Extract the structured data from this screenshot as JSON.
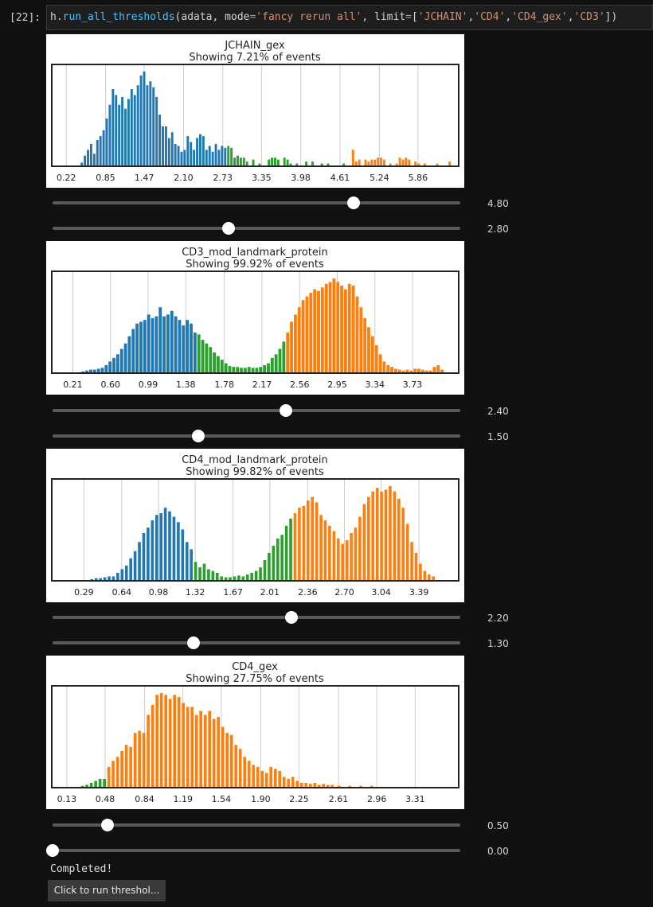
{
  "cell": {
    "prompt": "[22]:",
    "code": {
      "obj": "h.",
      "fn": "run_all_thresholds",
      "arg1": "(adata, mode",
      "eq": "=",
      "mode_val": "'fancy rerun all'",
      "arg2": ", limit",
      "eq2": "=",
      "open": "[",
      "s1": "'JCHAIN'",
      "c1": ",",
      "s2": "'CD4'",
      "c2": ",",
      "s3": "'CD4_gex'",
      "c3": ",",
      "s4": "'CD3'",
      "close": "])"
    }
  },
  "colors": {
    "blue": "#1f77b4",
    "green": "#2ca02c",
    "orange": "#ff7f0e",
    "grid": "#cccccc"
  },
  "chart_data": [
    {
      "type": "bar",
      "title": "JCHAIN_gex",
      "subtitle": "Showing 7.21% of events",
      "xticks": [
        "0.22",
        "0.85",
        "1.47",
        "2.10",
        "2.73",
        "3.35",
        "3.98",
        "4.61",
        "5.24",
        "5.86"
      ],
      "xlim": [
        0.0,
        6.5
      ],
      "bin_width": 0.05,
      "thresholds": [
        2.8,
        4.8
      ],
      "series_colors": [
        "blue",
        "green",
        "orange"
      ],
      "bins": [
        [
          0.45,
          3
        ],
        [
          0.5,
          10
        ],
        [
          0.55,
          16
        ],
        [
          0.6,
          22
        ],
        [
          0.65,
          12
        ],
        [
          0.7,
          26
        ],
        [
          0.75,
          30
        ],
        [
          0.8,
          36
        ],
        [
          0.85,
          48
        ],
        [
          0.9,
          62
        ],
        [
          0.95,
          78
        ],
        [
          1.0,
          72
        ],
        [
          1.05,
          62
        ],
        [
          1.1,
          70
        ],
        [
          1.15,
          58
        ],
        [
          1.2,
          68
        ],
        [
          1.25,
          78
        ],
        [
          1.3,
          72
        ],
        [
          1.35,
          82
        ],
        [
          1.4,
          92
        ],
        [
          1.45,
          96
        ],
        [
          1.5,
          82
        ],
        [
          1.55,
          86
        ],
        [
          1.6,
          80
        ],
        [
          1.65,
          70
        ],
        [
          1.7,
          52
        ],
        [
          1.75,
          40
        ],
        [
          1.8,
          40
        ],
        [
          1.85,
          28
        ],
        [
          1.9,
          34
        ],
        [
          1.95,
          22
        ],
        [
          2.0,
          20
        ],
        [
          2.05,
          14
        ],
        [
          2.1,
          16
        ],
        [
          2.15,
          30
        ],
        [
          2.2,
          24
        ],
        [
          2.25,
          16
        ],
        [
          2.3,
          28
        ],
        [
          2.35,
          32
        ],
        [
          2.4,
          30
        ],
        [
          2.45,
          16
        ],
        [
          2.5,
          20
        ],
        [
          2.55,
          14
        ],
        [
          2.6,
          22
        ],
        [
          2.65,
          16
        ],
        [
          2.7,
          20
        ],
        [
          2.75,
          18
        ],
        [
          2.8,
          20
        ],
        [
          2.85,
          18
        ],
        [
          2.9,
          8
        ],
        [
          2.95,
          10
        ],
        [
          3.0,
          8
        ],
        [
          3.05,
          8
        ],
        [
          3.1,
          4
        ],
        [
          3.2,
          6
        ],
        [
          3.3,
          2
        ],
        [
          3.45,
          6
        ],
        [
          3.5,
          8
        ],
        [
          3.55,
          8
        ],
        [
          3.6,
          6
        ],
        [
          3.7,
          8
        ],
        [
          3.75,
          6
        ],
        [
          3.8,
          2
        ],
        [
          3.9,
          2
        ],
        [
          4.05,
          4
        ],
        [
          4.15,
          4
        ],
        [
          4.3,
          2
        ],
        [
          4.4,
          2
        ],
        [
          4.65,
          2
        ],
        [
          4.8,
          16
        ],
        [
          4.85,
          4
        ],
        [
          4.9,
          6
        ],
        [
          5.0,
          6
        ],
        [
          5.05,
          4
        ],
        [
          5.1,
          6
        ],
        [
          5.15,
          6
        ],
        [
          5.2,
          8
        ],
        [
          5.25,
          8
        ],
        [
          5.3,
          6
        ],
        [
          5.4,
          2
        ],
        [
          5.5,
          2
        ],
        [
          5.55,
          8
        ],
        [
          5.6,
          6
        ],
        [
          5.65,
          8
        ],
        [
          5.7,
          6
        ],
        [
          5.8,
          4
        ],
        [
          5.85,
          2
        ],
        [
          5.95,
          2
        ],
        [
          6.15,
          2
        ],
        [
          6.35,
          4
        ]
      ]
    },
    {
      "type": "bar",
      "title": "CD3_mod_landmark_protein",
      "subtitle": "Showing 99.92% of events",
      "xticks": [
        "0.21",
        "0.60",
        "0.99",
        "1.38",
        "1.78",
        "2.17",
        "2.56",
        "2.95",
        "3.34",
        "3.73"
      ],
      "xlim": [
        0.0,
        4.2
      ],
      "bin_width": 0.04,
      "thresholds": [
        1.5,
        2.4
      ],
      "series_colors": [
        "blue",
        "green",
        "orange"
      ],
      "bins": [
        [
          0.3,
          1
        ],
        [
          0.34,
          2
        ],
        [
          0.38,
          3
        ],
        [
          0.42,
          3
        ],
        [
          0.46,
          4
        ],
        [
          0.5,
          5
        ],
        [
          0.54,
          8
        ],
        [
          0.58,
          12
        ],
        [
          0.62,
          16
        ],
        [
          0.66,
          20
        ],
        [
          0.7,
          26
        ],
        [
          0.74,
          32
        ],
        [
          0.78,
          40
        ],
        [
          0.82,
          48
        ],
        [
          0.86,
          54
        ],
        [
          0.9,
          56
        ],
        [
          0.94,
          58
        ],
        [
          0.98,
          64
        ],
        [
          1.02,
          60
        ],
        [
          1.06,
          62
        ],
        [
          1.1,
          72
        ],
        [
          1.14,
          62
        ],
        [
          1.18,
          64
        ],
        [
          1.22,
          68
        ],
        [
          1.26,
          62
        ],
        [
          1.3,
          58
        ],
        [
          1.34,
          52
        ],
        [
          1.38,
          58
        ],
        [
          1.42,
          54
        ],
        [
          1.46,
          44
        ],
        [
          1.5,
          42
        ],
        [
          1.54,
          36
        ],
        [
          1.58,
          32
        ],
        [
          1.62,
          28
        ],
        [
          1.66,
          22
        ],
        [
          1.7,
          18
        ],
        [
          1.74,
          14
        ],
        [
          1.78,
          10
        ],
        [
          1.82,
          7
        ],
        [
          1.86,
          6
        ],
        [
          1.9,
          6
        ],
        [
          1.94,
          5
        ],
        [
          1.98,
          5
        ],
        [
          2.02,
          6
        ],
        [
          2.06,
          5
        ],
        [
          2.1,
          5
        ],
        [
          2.14,
          6
        ],
        [
          2.18,
          8
        ],
        [
          2.22,
          10
        ],
        [
          2.26,
          16
        ],
        [
          2.3,
          20
        ],
        [
          2.34,
          26
        ],
        [
          2.38,
          34
        ],
        [
          2.42,
          44
        ],
        [
          2.46,
          56
        ],
        [
          2.5,
          64
        ],
        [
          2.54,
          72
        ],
        [
          2.58,
          80
        ],
        [
          2.62,
          84
        ],
        [
          2.66,
          88
        ],
        [
          2.7,
          92
        ],
        [
          2.74,
          90
        ],
        [
          2.78,
          94
        ],
        [
          2.82,
          98
        ],
        [
          2.86,
          100
        ],
        [
          2.9,
          104
        ],
        [
          2.94,
          100
        ],
        [
          2.98,
          96
        ],
        [
          3.02,
          92
        ],
        [
          3.06,
          98
        ],
        [
          3.1,
          96
        ],
        [
          3.14,
          84
        ],
        [
          3.18,
          72
        ],
        [
          3.22,
          60
        ],
        [
          3.26,
          50
        ],
        [
          3.3,
          40
        ],
        [
          3.34,
          30
        ],
        [
          3.38,
          20
        ],
        [
          3.42,
          12
        ],
        [
          3.46,
          8
        ],
        [
          3.5,
          6
        ],
        [
          3.54,
          4
        ],
        [
          3.58,
          3
        ],
        [
          3.62,
          2
        ],
        [
          3.66,
          3
        ],
        [
          3.7,
          2
        ],
        [
          3.74,
          4
        ],
        [
          3.78,
          4
        ],
        [
          3.82,
          3
        ],
        [
          3.86,
          2
        ],
        [
          3.9,
          2
        ],
        [
          3.94,
          6
        ],
        [
          3.98,
          8
        ],
        [
          4.02,
          3
        ]
      ]
    },
    {
      "type": "bar",
      "title": "CD4_mod_landmark_protein",
      "subtitle": "Showing 99.82% of events",
      "xticks": [
        "0.29",
        "0.64",
        "0.98",
        "1.32",
        "1.67",
        "2.01",
        "2.36",
        "2.70",
        "3.04",
        "3.39"
      ],
      "xlim": [
        0.0,
        3.75
      ],
      "bin_width": 0.034,
      "thresholds": [
        1.3,
        2.2
      ],
      "series_colors": [
        "blue",
        "green",
        "orange"
      ],
      "bins": [
        [
          0.35,
          1
        ],
        [
          0.39,
          2
        ],
        [
          0.43,
          2
        ],
        [
          0.47,
          3
        ],
        [
          0.51,
          4
        ],
        [
          0.55,
          4
        ],
        [
          0.59,
          8
        ],
        [
          0.63,
          12
        ],
        [
          0.67,
          16
        ],
        [
          0.71,
          24
        ],
        [
          0.75,
          32
        ],
        [
          0.79,
          42
        ],
        [
          0.83,
          52
        ],
        [
          0.87,
          58
        ],
        [
          0.91,
          66
        ],
        [
          0.95,
          72
        ],
        [
          0.99,
          74
        ],
        [
          1.03,
          80
        ],
        [
          1.07,
          76
        ],
        [
          1.11,
          70
        ],
        [
          1.15,
          64
        ],
        [
          1.19,
          56
        ],
        [
          1.23,
          42
        ],
        [
          1.27,
          34
        ],
        [
          1.31,
          20
        ],
        [
          1.35,
          14
        ],
        [
          1.39,
          18
        ],
        [
          1.43,
          12
        ],
        [
          1.47,
          10
        ],
        [
          1.51,
          8
        ],
        [
          1.55,
          4
        ],
        [
          1.59,
          3
        ],
        [
          1.63,
          3
        ],
        [
          1.67,
          4
        ],
        [
          1.71,
          5
        ],
        [
          1.75,
          4
        ],
        [
          1.79,
          6
        ],
        [
          1.83,
          8
        ],
        [
          1.87,
          10
        ],
        [
          1.91,
          14
        ],
        [
          1.95,
          22
        ],
        [
          1.99,
          30
        ],
        [
          2.03,
          38
        ],
        [
          2.07,
          46
        ],
        [
          2.11,
          50
        ],
        [
          2.15,
          60
        ],
        [
          2.19,
          68
        ],
        [
          2.23,
          74
        ],
        [
          2.27,
          80
        ],
        [
          2.31,
          82
        ],
        [
          2.35,
          88
        ],
        [
          2.39,
          92
        ],
        [
          2.43,
          86
        ],
        [
          2.47,
          72
        ],
        [
          2.51,
          66
        ],
        [
          2.55,
          60
        ],
        [
          2.59,
          54
        ],
        [
          2.63,
          46
        ],
        [
          2.67,
          40
        ],
        [
          2.71,
          44
        ],
        [
          2.75,
          52
        ],
        [
          2.79,
          58
        ],
        [
          2.83,
          70
        ],
        [
          2.87,
          84
        ],
        [
          2.91,
          92
        ],
        [
          2.95,
          98
        ],
        [
          2.99,
          102
        ],
        [
          3.03,
          98
        ],
        [
          3.07,
          100
        ],
        [
          3.11,
          104
        ],
        [
          3.15,
          98
        ],
        [
          3.19,
          90
        ],
        [
          3.23,
          80
        ],
        [
          3.27,
          62
        ],
        [
          3.31,
          42
        ],
        [
          3.35,
          30
        ],
        [
          3.39,
          18
        ],
        [
          3.43,
          10
        ],
        [
          3.47,
          6
        ],
        [
          3.51,
          4
        ]
      ]
    },
    {
      "type": "bar",
      "title": "CD4_gex",
      "subtitle": "Showing 27.75% of events",
      "xticks": [
        "0.13",
        "0.48",
        "0.84",
        "1.19",
        "1.54",
        "1.90",
        "2.25",
        "2.61",
        "2.96",
        "3.31"
      ],
      "xlim": [
        0.0,
        3.7
      ],
      "bin_width": 0.034,
      "thresholds": [
        0.0,
        0.5
      ],
      "series_colors": [
        "blue",
        "green",
        "orange"
      ],
      "bins": [
        [
          0.26,
          1
        ],
        [
          0.3,
          2
        ],
        [
          0.34,
          4
        ],
        [
          0.38,
          6
        ],
        [
          0.42,
          8
        ],
        [
          0.46,
          8
        ],
        [
          0.5,
          20
        ],
        [
          0.54,
          26
        ],
        [
          0.58,
          30
        ],
        [
          0.62,
          36
        ],
        [
          0.66,
          42
        ],
        [
          0.7,
          40
        ],
        [
          0.74,
          54
        ],
        [
          0.78,
          56
        ],
        [
          0.82,
          54
        ],
        [
          0.86,
          72
        ],
        [
          0.9,
          82
        ],
        [
          0.94,
          92
        ],
        [
          0.98,
          94
        ],
        [
          1.02,
          92
        ],
        [
          1.06,
          88
        ],
        [
          1.1,
          92
        ],
        [
          1.14,
          90
        ],
        [
          1.18,
          84
        ],
        [
          1.22,
          80
        ],
        [
          1.26,
          80
        ],
        [
          1.3,
          72
        ],
        [
          1.34,
          76
        ],
        [
          1.38,
          72
        ],
        [
          1.42,
          76
        ],
        [
          1.46,
          68
        ],
        [
          1.5,
          70
        ],
        [
          1.54,
          60
        ],
        [
          1.58,
          54
        ],
        [
          1.62,
          52
        ],
        [
          1.66,
          42
        ],
        [
          1.7,
          38
        ],
        [
          1.74,
          30
        ],
        [
          1.78,
          26
        ],
        [
          1.82,
          22
        ],
        [
          1.86,
          20
        ],
        [
          1.9,
          16
        ],
        [
          1.94,
          14
        ],
        [
          1.98,
          20
        ],
        [
          2.02,
          18
        ],
        [
          2.06,
          16
        ],
        [
          2.1,
          10
        ],
        [
          2.14,
          8
        ],
        [
          2.18,
          10
        ],
        [
          2.22,
          6
        ],
        [
          2.26,
          4
        ],
        [
          2.3,
          4
        ],
        [
          2.34,
          3
        ],
        [
          2.38,
          4
        ],
        [
          2.42,
          2
        ],
        [
          2.46,
          3
        ],
        [
          2.5,
          2
        ],
        [
          2.54,
          2
        ],
        [
          2.6,
          1
        ],
        [
          2.7,
          1
        ],
        [
          2.8,
          1
        ],
        [
          2.9,
          1
        ]
      ]
    }
  ],
  "sliders": [
    {
      "value": 4.8,
      "label": "4.80",
      "min": 0,
      "max": 6.5
    },
    {
      "value": 2.8,
      "label": "2.80",
      "min": 0,
      "max": 6.5
    },
    {
      "value": 2.4,
      "label": "2.40",
      "min": 0,
      "max": 4.2
    },
    {
      "value": 1.5,
      "label": "1.50",
      "min": 0,
      "max": 4.2
    },
    {
      "value": 2.2,
      "label": "2.20",
      "min": 0,
      "max": 3.75
    },
    {
      "value": 1.3,
      "label": "1.30",
      "min": 0,
      "max": 3.75
    },
    {
      "value": 0.5,
      "label": "0.50",
      "min": 0,
      "max": 3.7
    },
    {
      "value": 0.0,
      "label": "0.00",
      "min": 0,
      "max": 3.7
    }
  ],
  "status": {
    "text": "Completed!"
  },
  "run_button": {
    "label": "Click to run threshol..."
  }
}
